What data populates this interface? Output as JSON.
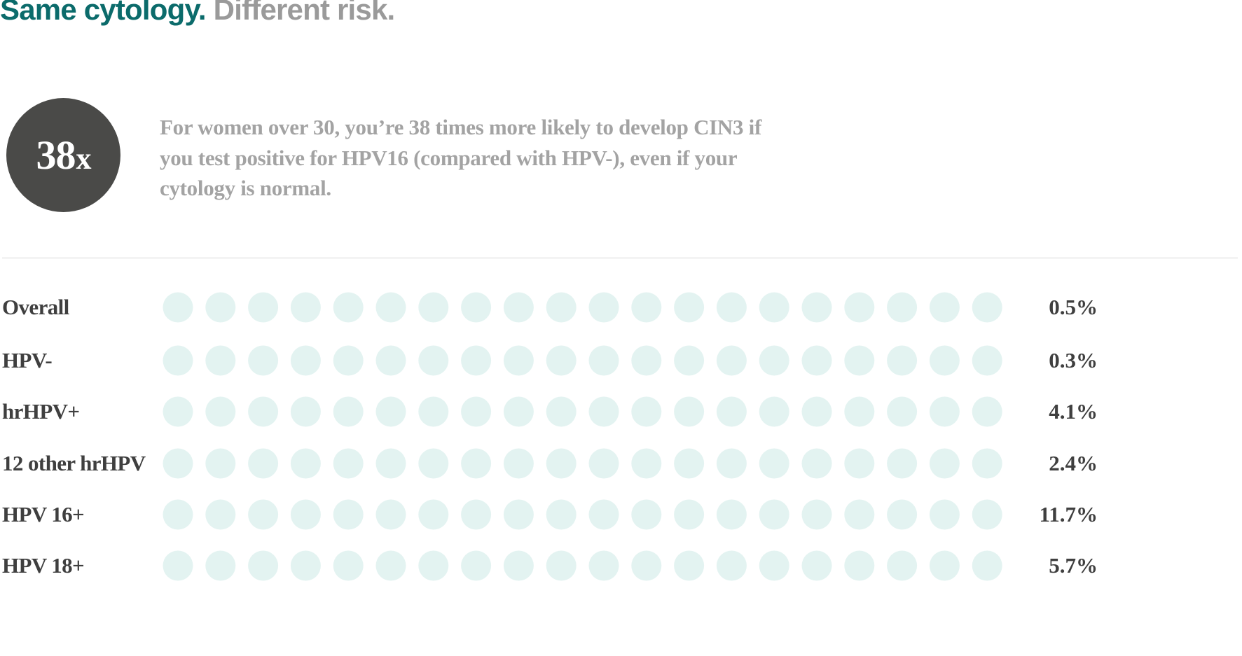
{
  "header": {
    "title_part1": "Same cytology.",
    "title_part2": "Different risk."
  },
  "callout": {
    "number": "38",
    "unit": "x",
    "text": "For women over 30, you’re 38 times more likely to develop CIN3 if you test positive for HPV16 (compared with HPV-), even if your cytology is normal."
  },
  "colors": {
    "title_accent": "#0b6b6b",
    "title_muted": "#9a9a9a",
    "badge": "#4a4a48",
    "dot_empty": "#e3f3f1",
    "label_text": "#3f3f3f"
  },
  "chart_data": {
    "type": "dot-matrix",
    "dots_per_row": 20,
    "categories": [
      "Overall",
      "HPV-",
      "hrHPV+",
      "12 other hrHPV",
      "HPV 16+",
      "HPV 18+"
    ],
    "values": [
      0.5,
      0.3,
      4.1,
      2.4,
      11.7,
      5.7
    ],
    "value_labels": [
      "0.5%",
      "0.3%",
      "4.1%",
      "2.4%",
      "11.7%",
      "5.7%"
    ],
    "unit": "%"
  }
}
